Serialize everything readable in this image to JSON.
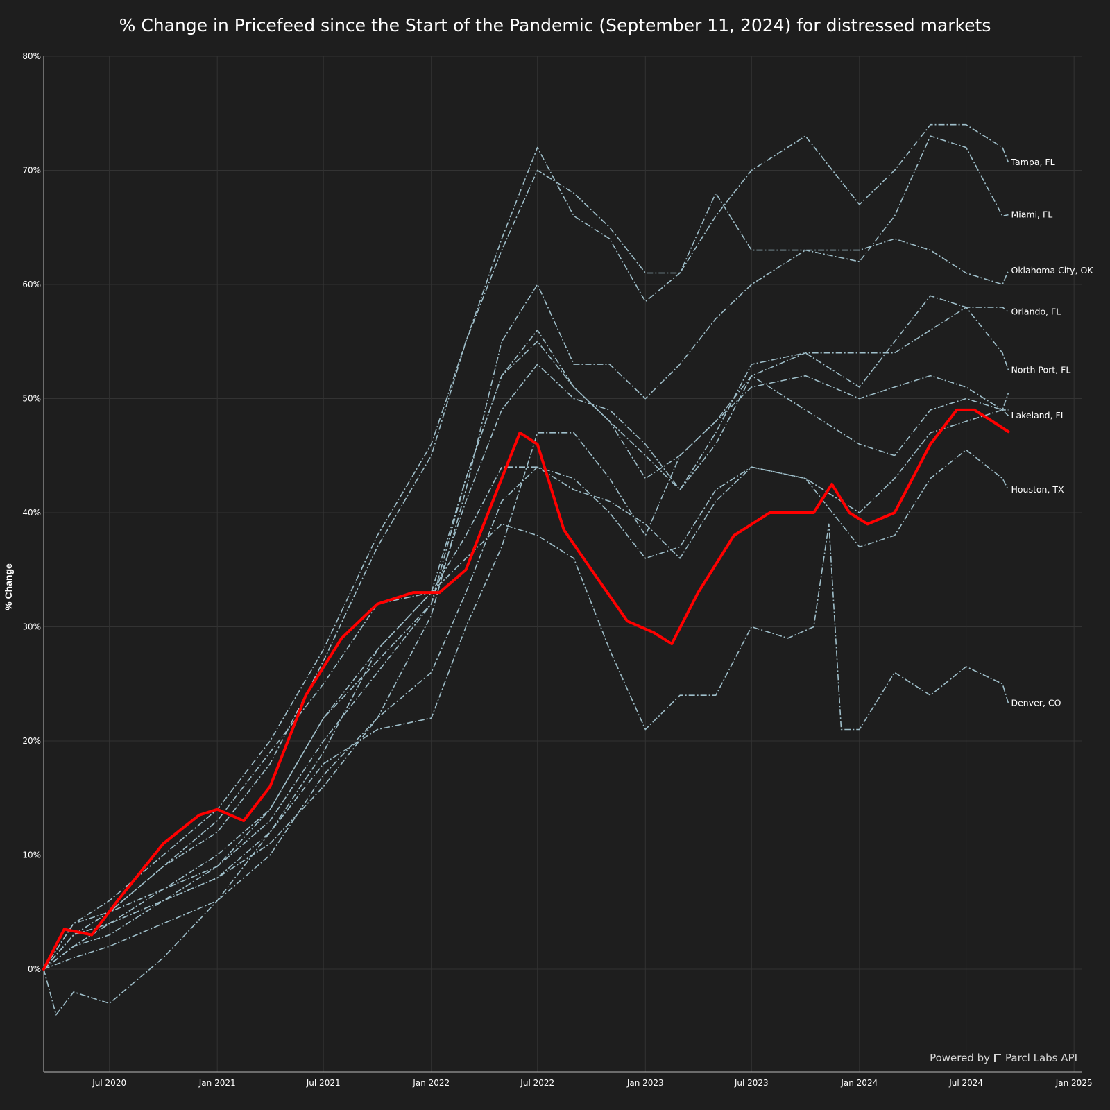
{
  "chart_data": {
    "type": "line",
    "title": "% Change in Pricefeed since the Start of the Pandemic (September 11, 2024) for distressed markets",
    "xlabel": "",
    "ylabel": "% Change",
    "xlim": [
      "2020-03-11",
      "2025-01-15"
    ],
    "ylim": [
      -9,
      80
    ],
    "x_ticks": [
      {
        "date": "2020-07-01",
        "label": "Jul 2020"
      },
      {
        "date": "2021-01-01",
        "label": "Jan 2021"
      },
      {
        "date": "2021-07-01",
        "label": "Jul 2021"
      },
      {
        "date": "2022-01-01",
        "label": "Jan 2022"
      },
      {
        "date": "2022-07-01",
        "label": "Jul 2022"
      },
      {
        "date": "2023-01-01",
        "label": "Jan 2023"
      },
      {
        "date": "2023-07-01",
        "label": "Jul 2023"
      },
      {
        "date": "2024-01-01",
        "label": "Jan 2024"
      },
      {
        "date": "2024-07-01",
        "label": "Jul 2024"
      },
      {
        "date": "2025-01-01",
        "label": "Jan 2025"
      }
    ],
    "y_ticks": [
      {
        "value": 0,
        "label": "0%"
      },
      {
        "value": 10,
        "label": "10%"
      },
      {
        "value": 20,
        "label": "20%"
      },
      {
        "value": 30,
        "label": "30%"
      },
      {
        "value": 40,
        "label": "40%"
      },
      {
        "value": 50,
        "label": "50%"
      },
      {
        "value": 60,
        "label": "60%"
      },
      {
        "value": 70,
        "label": "70%"
      },
      {
        "value": 80,
        "label": "80%"
      }
    ],
    "grid": true,
    "legend": "none",
    "highlight_color": "#ff0000",
    "series_color": "#9fbfca",
    "series": [
      {
        "name": "Tampa, FL",
        "label": "Tampa, FL",
        "highlight": false,
        "x": [
          "2020-03-11",
          "2020-05-01",
          "2020-07-01",
          "2020-10-01",
          "2021-01-01",
          "2021-04-01",
          "2021-07-01",
          "2021-10-01",
          "2022-01-01",
          "2022-03-01",
          "2022-05-01",
          "2022-07-01",
          "2022-09-01",
          "2022-11-01",
          "2023-01-01",
          "2023-03-01",
          "2023-05-01",
          "2023-07-01",
          "2023-10-01",
          "2024-01-01",
          "2024-03-01",
          "2024-05-01",
          "2024-07-01",
          "2024-09-01",
          "2024-09-11"
        ],
        "y": [
          0,
          4,
          6,
          10,
          14,
          20,
          28,
          38,
          46,
          55,
          63,
          70,
          68,
          65,
          61,
          61,
          66,
          70,
          73,
          67,
          70,
          74,
          74,
          72,
          70.7
        ]
      },
      {
        "name": "Miami, FL",
        "label": "Miami, FL",
        "highlight": false,
        "x": [
          "2020-03-11",
          "2020-05-01",
          "2020-07-01",
          "2020-10-01",
          "2021-01-01",
          "2021-04-01",
          "2021-07-01",
          "2021-10-01",
          "2022-01-01",
          "2022-03-01",
          "2022-05-01",
          "2022-07-01",
          "2022-09-01",
          "2022-11-01",
          "2023-01-01",
          "2023-03-01",
          "2023-05-01",
          "2023-07-01",
          "2023-10-01",
          "2024-01-01",
          "2024-03-01",
          "2024-05-01",
          "2024-07-01",
          "2024-09-01",
          "2024-09-11"
        ],
        "y": [
          0,
          3,
          5,
          9,
          12,
          18,
          27,
          37,
          45,
          55,
          64,
          72,
          66,
          64,
          58.5,
          61,
          68,
          63,
          63,
          62,
          66,
          73,
          72,
          66,
          66.1
        ]
      },
      {
        "name": "Oklahoma City, OK",
        "label": "Oklahoma City, OK",
        "highlight": false,
        "x": [
          "2020-03-11",
          "2020-05-01",
          "2020-07-01",
          "2020-10-01",
          "2021-01-01",
          "2021-04-01",
          "2021-07-01",
          "2021-10-01",
          "2022-01-01",
          "2022-03-01",
          "2022-05-01",
          "2022-07-01",
          "2022-09-01",
          "2022-11-01",
          "2023-01-01",
          "2023-03-01",
          "2023-05-01",
          "2023-07-01",
          "2023-10-01",
          "2024-01-01",
          "2024-03-01",
          "2024-05-01",
          "2024-07-01",
          "2024-09-01",
          "2024-09-11"
        ],
        "y": [
          0,
          2,
          4,
          6,
          8,
          11,
          16,
          22,
          31,
          42,
          55,
          60,
          53,
          53,
          50,
          53,
          57,
          60,
          63,
          63,
          64,
          63,
          61,
          60,
          61.2
        ]
      },
      {
        "name": "Orlando, FL",
        "label": "Orlando, FL",
        "highlight": false,
        "x": [
          "2020-03-11",
          "2020-05-01",
          "2020-07-01",
          "2020-10-01",
          "2021-01-01",
          "2021-04-01",
          "2021-07-01",
          "2021-10-01",
          "2022-01-01",
          "2022-03-01",
          "2022-05-01",
          "2022-07-01",
          "2022-09-01",
          "2022-11-01",
          "2023-01-01",
          "2023-03-01",
          "2023-05-01",
          "2023-07-01",
          "2023-10-01",
          "2024-01-01",
          "2024-03-01",
          "2024-05-01",
          "2024-07-01",
          "2024-09-01",
          "2024-09-11"
        ],
        "y": [
          0,
          2,
          4,
          6,
          9,
          13,
          20,
          26,
          32,
          43,
          52,
          56,
          51,
          48,
          43,
          45,
          48,
          52,
          54,
          54,
          54,
          56,
          58,
          58,
          57.6
        ]
      },
      {
        "name": "North Port, FL",
        "label": "North Port, FL",
        "highlight": false,
        "x": [
          "2020-03-11",
          "2020-05-01",
          "2020-07-01",
          "2020-10-01",
          "2021-01-01",
          "2021-04-01",
          "2021-07-01",
          "2021-10-01",
          "2022-01-01",
          "2022-03-01",
          "2022-05-01",
          "2022-07-01",
          "2022-09-01",
          "2022-11-01",
          "2023-01-01",
          "2023-03-01",
          "2023-05-01",
          "2023-07-01",
          "2023-10-01",
          "2024-01-01",
          "2024-03-01",
          "2024-05-01",
          "2024-07-01",
          "2024-09-01",
          "2024-09-11"
        ],
        "y": [
          0,
          3,
          5,
          7,
          9,
          14,
          22,
          28,
          33,
          43,
          52,
          55,
          51,
          48,
          45,
          42,
          47,
          53,
          54,
          51,
          55,
          59,
          58,
          54,
          52.5
        ]
      },
      {
        "name": "Lakeland, FL",
        "label": "Lakeland, FL",
        "highlight": false,
        "x": [
          "2020-03-11",
          "2020-05-01",
          "2020-07-01",
          "2020-10-01",
          "2021-01-01",
          "2021-04-01",
          "2021-07-01",
          "2021-10-01",
          "2022-01-01",
          "2022-03-01",
          "2022-05-01",
          "2022-07-01",
          "2022-09-01",
          "2022-11-01",
          "2023-01-01",
          "2023-03-01",
          "2023-05-01",
          "2023-07-01",
          "2023-10-01",
          "2024-01-01",
          "2024-03-01",
          "2024-05-01",
          "2024-07-01",
          "2024-09-01",
          "2024-09-11"
        ],
        "y": [
          0,
          3,
          4,
          7,
          10,
          14,
          22,
          27,
          32,
          41,
          49,
          53,
          50,
          49,
          46,
          42,
          46,
          52,
          49,
          46,
          45,
          49,
          50,
          49,
          48.5
        ]
      },
      {
        "name": "Houston, TX",
        "label": "Houston, TX",
        "highlight": false,
        "x": [
          "2020-03-11",
          "2020-05-01",
          "2020-07-01",
          "2020-10-01",
          "2021-01-01",
          "2021-04-01",
          "2021-07-01",
          "2021-10-01",
          "2022-01-01",
          "2022-03-01",
          "2022-05-01",
          "2022-07-01",
          "2022-09-01",
          "2022-11-01",
          "2023-01-01",
          "2023-03-01",
          "2023-05-01",
          "2023-07-01",
          "2023-10-01",
          "2024-01-01",
          "2024-03-01",
          "2024-05-01",
          "2024-07-01",
          "2024-09-01",
          "2024-09-11"
        ],
        "y": [
          0,
          1,
          2,
          4,
          6,
          10,
          17,
          22,
          26,
          33,
          41,
          44,
          43,
          40,
          36,
          37,
          42,
          44,
          43,
          37,
          38,
          43,
          45.5,
          43,
          42
        ]
      },
      {
        "name": "Denver, CO",
        "label": "Denver, CO",
        "highlight": false,
        "x": [
          "2020-03-11",
          "2020-04-01",
          "2020-05-01",
          "2020-07-01",
          "2020-10-01",
          "2021-01-01",
          "2021-04-01",
          "2021-07-01",
          "2021-10-01",
          "2022-01-01",
          "2022-03-01",
          "2022-05-01",
          "2022-07-01",
          "2022-09-01",
          "2022-11-01",
          "2023-01-01",
          "2023-03-01",
          "2023-05-01",
          "2023-07-01",
          "2023-09-01",
          "2023-10-15",
          "2023-11-10",
          "2023-12-01",
          "2024-01-01",
          "2024-03-01",
          "2024-05-01",
          "2024-07-01",
          "2024-09-01",
          "2024-09-11"
        ],
        "y": [
          0,
          -4,
          -2,
          -3,
          1,
          6,
          12,
          19,
          28,
          33,
          36,
          39,
          38,
          36,
          28,
          21,
          24,
          24,
          30,
          29,
          30,
          39,
          21,
          21,
          26,
          24,
          26.5,
          25,
          23.3
        ]
      },
      {
        "name": "",
        "label": "",
        "highlight": false,
        "x": [
          "2020-03-11",
          "2020-05-01",
          "2020-07-01",
          "2020-10-01",
          "2021-01-01",
          "2021-04-01",
          "2021-07-01",
          "2021-10-01",
          "2022-01-01",
          "2022-03-01",
          "2022-05-01",
          "2022-07-01",
          "2022-09-01",
          "2022-11-01",
          "2023-01-01",
          "2023-03-01",
          "2023-05-01",
          "2023-07-01",
          "2023-10-01",
          "2024-01-01",
          "2024-03-01",
          "2024-05-01",
          "2024-07-01",
          "2024-09-01",
          "2024-09-11"
        ],
        "y": [
          0,
          4,
          5,
          9,
          13,
          19,
          25,
          32,
          33,
          38,
          44,
          44,
          42,
          41,
          39,
          36,
          41,
          44,
          43,
          40,
          43,
          47,
          48,
          49,
          50.5
        ]
      },
      {
        "name": "",
        "label": "",
        "highlight": false,
        "x": [
          "2020-03-11",
          "2020-05-01",
          "2020-07-01",
          "2020-10-01",
          "2021-01-01",
          "2021-04-01",
          "2021-07-01",
          "2021-10-01",
          "2022-01-01",
          "2022-03-01",
          "2022-05-01",
          "2022-07-01",
          "2022-09-01",
          "2022-11-01",
          "2023-01-01",
          "2023-03-01",
          "2023-05-01",
          "2023-07-01",
          "2023-10-01",
          "2024-01-01",
          "2024-03-01",
          "2024-05-01",
          "2024-07-01",
          "2024-09-01",
          "2024-09-11"
        ],
        "y": [
          0,
          2,
          3,
          6,
          8,
          12,
          18,
          21,
          22,
          30,
          37,
          47,
          47,
          43,
          38,
          45,
          48,
          51,
          52,
          50,
          51,
          52,
          51,
          49,
          49
        ]
      },
      {
        "name": "Lakeland, FL",
        "label": "",
        "highlight": true,
        "x": [
          "2020-03-11",
          "2020-04-15",
          "2020-06-01",
          "2020-07-15",
          "2020-10-01",
          "2020-12-01",
          "2021-01-01",
          "2021-02-15",
          "2021-04-01",
          "2021-06-01",
          "2021-08-01",
          "2021-10-01",
          "2021-12-01",
          "2022-01-15",
          "2022-03-01",
          "2022-05-01",
          "2022-06-01",
          "2022-07-01",
          "2022-08-15",
          "2022-10-01",
          "2022-12-01",
          "2023-01-15",
          "2023-02-15",
          "2023-04-01",
          "2023-06-01",
          "2023-08-01",
          "2023-10-15",
          "2023-11-15",
          "2023-12-15",
          "2024-01-15",
          "2024-03-01",
          "2024-05-01",
          "2024-06-15",
          "2024-07-15",
          "2024-08-15",
          "2024-09-11"
        ],
        "y": [
          0,
          3.5,
          3,
          6,
          11,
          13.5,
          14,
          13,
          16,
          24,
          29,
          32,
          33,
          33,
          35,
          43,
          47,
          46,
          38.5,
          35,
          30.5,
          29.5,
          28.5,
          33,
          38,
          40,
          40,
          42.5,
          40,
          39,
          40,
          46,
          49,
          49,
          48,
          47.1
        ]
      }
    ]
  },
  "watermark": {
    "text": "Powered by",
    "brand": "Parcl Labs API"
  }
}
